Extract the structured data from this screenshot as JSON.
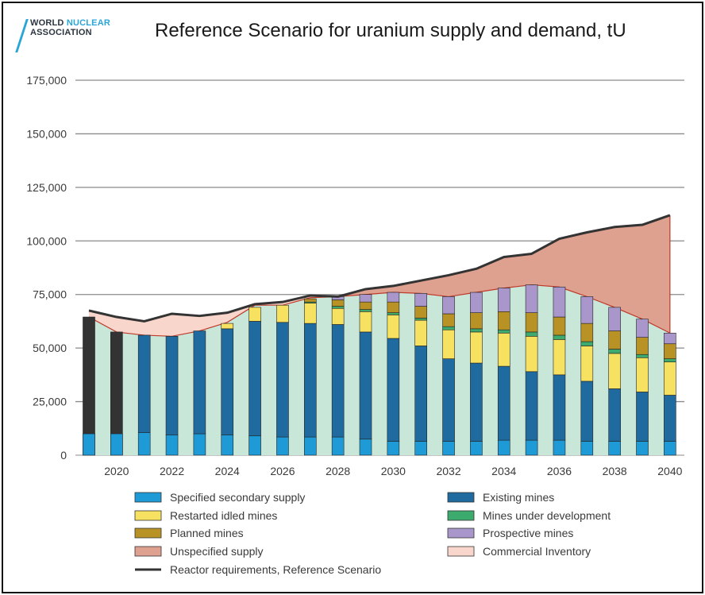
{
  "logo": {
    "line1_a": "WORLD ",
    "line1_b": "NUCLEAR",
    "line2": "ASSOCIATION"
  },
  "colors": {
    "secondary": "#1e9ad6",
    "existing": "#1f6a9e",
    "restarted": "#f7e160",
    "under_development": "#3daa6e",
    "planned": "#b99225",
    "prospective": "#a997cc",
    "unspecified": "#dea08f",
    "inventory": "#f8d6cc",
    "background_fill": "#c8e7d9",
    "requirements": "#333333",
    "grid": "#8a8a8a",
    "historic": "#333333"
  },
  "chart_data": {
    "type": "bar",
    "title": "Reference Scenario for uranium supply and demand, tU",
    "ylim": [
      0,
      175000
    ],
    "yticks": [
      "0",
      "25,000",
      "50,000",
      "75,000",
      "100,000",
      "125,000",
      "150,000",
      "175,000"
    ],
    "xtick_labels": [
      "2020",
      "2022",
      "2024",
      "2026",
      "2028",
      "2030",
      "2032",
      "2034",
      "2036",
      "2038",
      "2040"
    ],
    "grid": true,
    "legend_position": "bottom",
    "years": [
      2019,
      2020,
      2021,
      2022,
      2023,
      2024,
      2025,
      2026,
      2027,
      2028,
      2029,
      2030,
      2031,
      2032,
      2033,
      2034,
      2035,
      2036,
      2037,
      2038,
      2039,
      2040
    ],
    "historic_supply": [
      64500,
      57500
    ],
    "series": [
      {
        "name": "Specified secondary supply",
        "key": "secondary",
        "values": [
          10000,
          10000,
          10500,
          9500,
          10000,
          9500,
          9000,
          8500,
          8500,
          8500,
          7500,
          6500,
          6500,
          6500,
          6500,
          7000,
          7000,
          7000,
          6500,
          6500,
          6500,
          6500
        ]
      },
      {
        "name": "Existing mines",
        "key": "existing",
        "values": [
          0,
          0,
          45500,
          46000,
          48000,
          49500,
          53500,
          53500,
          53000,
          52500,
          50000,
          48000,
          44500,
          38500,
          36500,
          34500,
          32000,
          30500,
          28000,
          24500,
          23000,
          21500
        ]
      },
      {
        "name": "Restarted idled mines",
        "key": "restarted",
        "values": [
          0,
          0,
          0,
          0,
          0,
          2500,
          6500,
          8000,
          9500,
          7500,
          9500,
          11000,
          12000,
          13500,
          14500,
          15500,
          16500,
          16500,
          16500,
          16500,
          16000,
          15500
        ]
      },
      {
        "name": "Mines under development",
        "key": "under_development",
        "values": [
          0,
          0,
          0,
          0,
          0,
          0,
          0,
          0,
          500,
          1000,
          1000,
          1000,
          1000,
          1500,
          1500,
          1500,
          2000,
          2000,
          2000,
          2000,
          1500,
          1500
        ]
      },
      {
        "name": "Planned mines",
        "key": "planned",
        "values": [
          0,
          0,
          0,
          0,
          0,
          0,
          0,
          0,
          1500,
          3000,
          3500,
          5000,
          5500,
          6000,
          7500,
          8500,
          9000,
          8500,
          8500,
          8500,
          8000,
          7000
        ]
      },
      {
        "name": "Prospective mines",
        "key": "prospective",
        "values": [
          0,
          0,
          0,
          0,
          0,
          0,
          0,
          0,
          0,
          1500,
          3500,
          4500,
          6000,
          8000,
          9500,
          11000,
          13000,
          14000,
          12500,
          11000,
          8500,
          5000
        ]
      }
    ],
    "unspecified_supply": {
      "name": "Unspecified supply"
    },
    "commercial_inventory": {
      "name": "Commercial Inventory"
    },
    "supply_curve": [
      64500,
      57500,
      56000,
      55500,
      58000,
      62000,
      70000,
      70000,
      73500,
      74000,
      75000,
      76000,
      75500,
      74000,
      76000,
      78000,
      79500,
      78500,
      74000,
      69000,
      63500,
      57000
    ],
    "reactor_requirements": {
      "name": "Reactor requirements, Reference Scenario",
      "values": [
        67500,
        64500,
        62500,
        66000,
        65000,
        66500,
        70500,
        71500,
        74500,
        74000,
        77500,
        79000,
        81500,
        84000,
        87000,
        92500,
        94000,
        101000,
        104000,
        106500,
        107500,
        112000
      ]
    }
  }
}
